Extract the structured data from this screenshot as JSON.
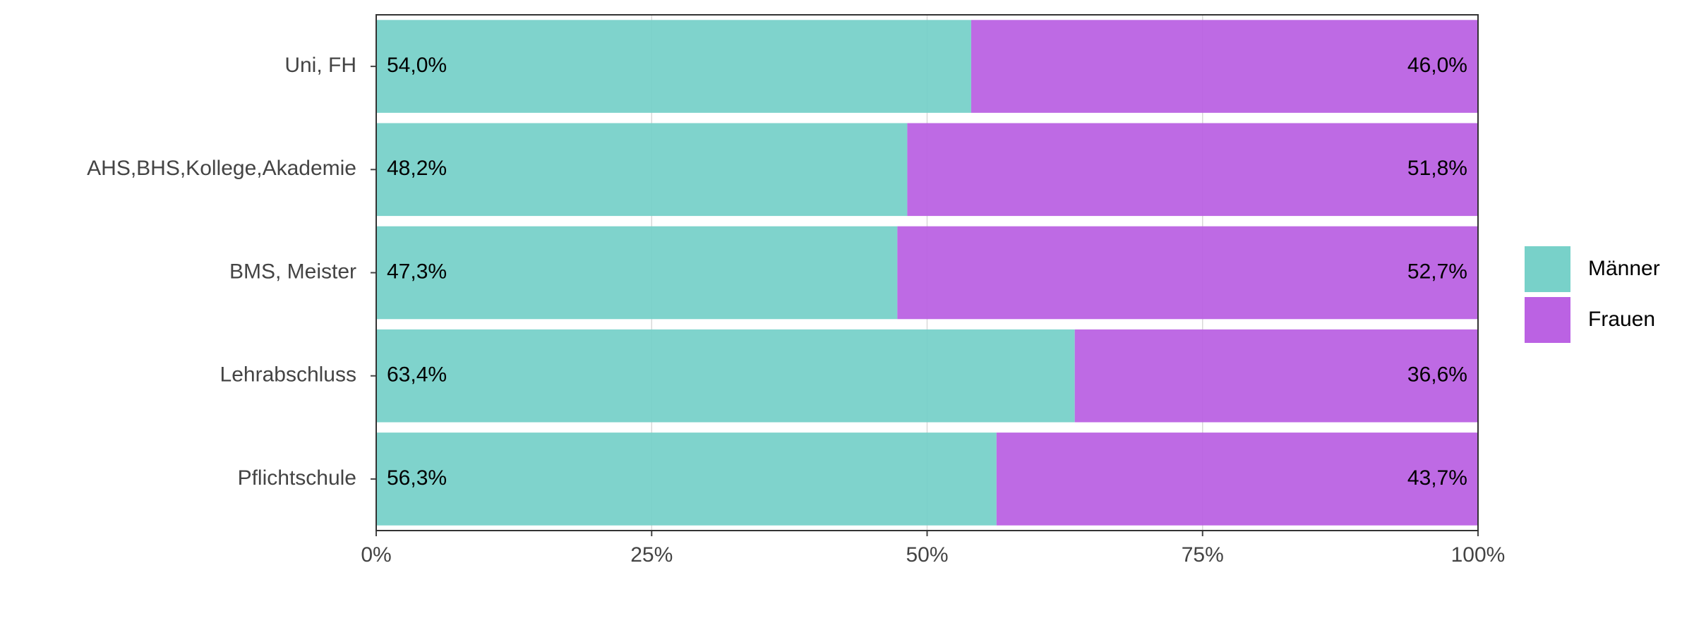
{
  "chart_data": {
    "type": "bar",
    "orientation": "horizontal",
    "stacked": true,
    "categories": [
      "Uni, FH",
      "AHS,BHS,Kollege,Akademie",
      "BMS, Meister",
      "Lehrabschluss",
      "Pflichtschule"
    ],
    "series": [
      {
        "name": "Männer",
        "color": "#78d1c9",
        "values": [
          54.0,
          48.2,
          47.3,
          63.4,
          56.3
        ],
        "value_labels": [
          "54,0%",
          "48,2%",
          "47,3%",
          "63,4%",
          "56,3%"
        ]
      },
      {
        "name": "Frauen",
        "color": "#bb62e3",
        "values": [
          46.0,
          51.8,
          52.7,
          36.6,
          43.7
        ],
        "value_labels": [
          "46,0%",
          "51,8%",
          "52,7%",
          "36,6%",
          "43,7%"
        ]
      }
    ],
    "xlim": [
      0,
      100
    ],
    "xticks": [
      {
        "value": 0,
        "label": "0%"
      },
      {
        "value": 25,
        "label": "25%"
      },
      {
        "value": 50,
        "label": "50%"
      },
      {
        "value": 75,
        "label": "75%"
      },
      {
        "value": 100,
        "label": "100%"
      }
    ],
    "grid": true,
    "legend": "right"
  }
}
